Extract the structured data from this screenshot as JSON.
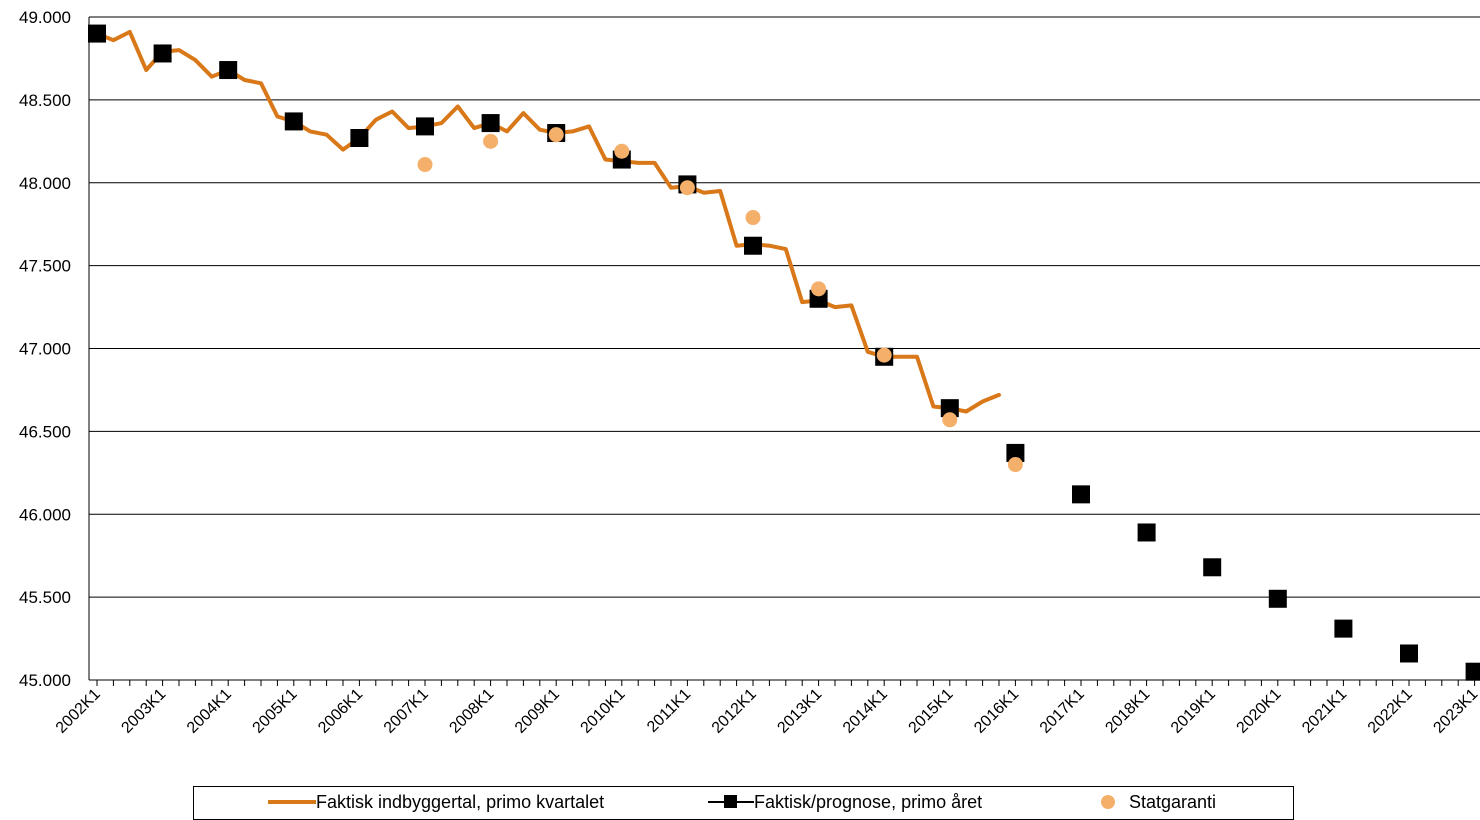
{
  "colors": {
    "actual_line": "#d97818",
    "forecast_marker": "#000000",
    "statgaranti_marker": "#f4b06a",
    "grid": "#000000"
  },
  "chart_data": {
    "type": "line",
    "title": "",
    "xlabel": "",
    "ylabel": "",
    "ylim": [
      45000,
      49000
    ],
    "y_ticks": [
      "45.000",
      "45.500",
      "46.000",
      "46.500",
      "47.000",
      "47.500",
      "48.000",
      "48.500",
      "49.000"
    ],
    "y_tick_values": [
      45000,
      45500,
      46000,
      46500,
      47000,
      47500,
      48000,
      48500,
      49000
    ],
    "x_tick_labels": [
      "2002K1",
      "2003K1",
      "2004K1",
      "2005K1",
      "2006K1",
      "2007K1",
      "2008K1",
      "2009K1",
      "2010K1",
      "2011K1",
      "2012K1",
      "2013K1",
      "2014K1",
      "2015K1",
      "2016K1",
      "2017K1",
      "2018K1",
      "2019K1",
      "2020K1",
      "2021K1",
      "2022K1",
      "2023K1"
    ],
    "quarters_per_year": 4,
    "grid": true,
    "legend_position": "bottom",
    "series": [
      {
        "name": "Faktisk indbyggertal, primo kvartalet",
        "style": "line",
        "x": [
          "2002K1",
          "2002K2",
          "2002K3",
          "2002K4",
          "2003K1",
          "2003K2",
          "2003K3",
          "2003K4",
          "2004K1",
          "2004K2",
          "2004K3",
          "2004K4",
          "2005K1",
          "2005K2",
          "2005K3",
          "2005K4",
          "2006K1",
          "2006K2",
          "2006K3",
          "2006K4",
          "2007K1",
          "2007K2",
          "2007K3",
          "2007K4",
          "2008K1",
          "2008K2",
          "2008K3",
          "2008K4",
          "2009K1",
          "2009K2",
          "2009K3",
          "2009K4",
          "2010K1",
          "2010K2",
          "2010K3",
          "2010K4",
          "2011K1",
          "2011K2",
          "2011K3",
          "2011K4",
          "2012K1",
          "2012K2",
          "2012K3",
          "2012K4",
          "2013K1",
          "2013K2",
          "2013K3",
          "2013K4",
          "2014K1",
          "2014K2",
          "2014K3",
          "2014K4",
          "2015K1",
          "2015K2",
          "2015K3",
          "2015K4"
        ],
        "values": [
          48900,
          48860,
          48910,
          48680,
          48790,
          48800,
          48740,
          48640,
          48680,
          48620,
          48600,
          48400,
          48370,
          48310,
          48290,
          48200,
          48270,
          48380,
          48430,
          48330,
          48340,
          48360,
          48460,
          48330,
          48360,
          48310,
          48420,
          48320,
          48300,
          48310,
          48340,
          48140,
          48130,
          48120,
          48120,
          47970,
          47980,
          47940,
          47950,
          47620,
          47630,
          47620,
          47600,
          47280,
          47290,
          47250,
          47260,
          46980,
          46950,
          46950,
          46950,
          46650,
          46640,
          46620,
          46680,
          46720
        ]
      },
      {
        "name": "Faktisk/prognose, primo året",
        "style": "square",
        "x": [
          "2002K1",
          "2003K1",
          "2004K1",
          "2005K1",
          "2006K1",
          "2007K1",
          "2008K1",
          "2009K1",
          "2010K1",
          "2011K1",
          "2012K1",
          "2013K1",
          "2014K1",
          "2015K1",
          "2016K1",
          "2017K1",
          "2018K1",
          "2019K1",
          "2020K1",
          "2021K1",
          "2022K1",
          "2023K1"
        ],
        "values": [
          48900,
          48780,
          48680,
          48370,
          48270,
          48340,
          48360,
          48300,
          48140,
          47990,
          47620,
          47300,
          46950,
          46640,
          46370,
          46120,
          45890,
          45680,
          45490,
          45310,
          45160,
          45050
        ]
      },
      {
        "name": "Statgaranti",
        "style": "dot",
        "x": [
          "2007K1",
          "2008K1",
          "2009K1",
          "2010K1",
          "2011K1",
          "2012K1",
          "2013K1",
          "2014K1",
          "2015K1",
          "2016K1"
        ],
        "values": [
          48110,
          48250,
          48290,
          48190,
          47970,
          47790,
          47360,
          46960,
          46570,
          46300
        ]
      }
    ]
  }
}
